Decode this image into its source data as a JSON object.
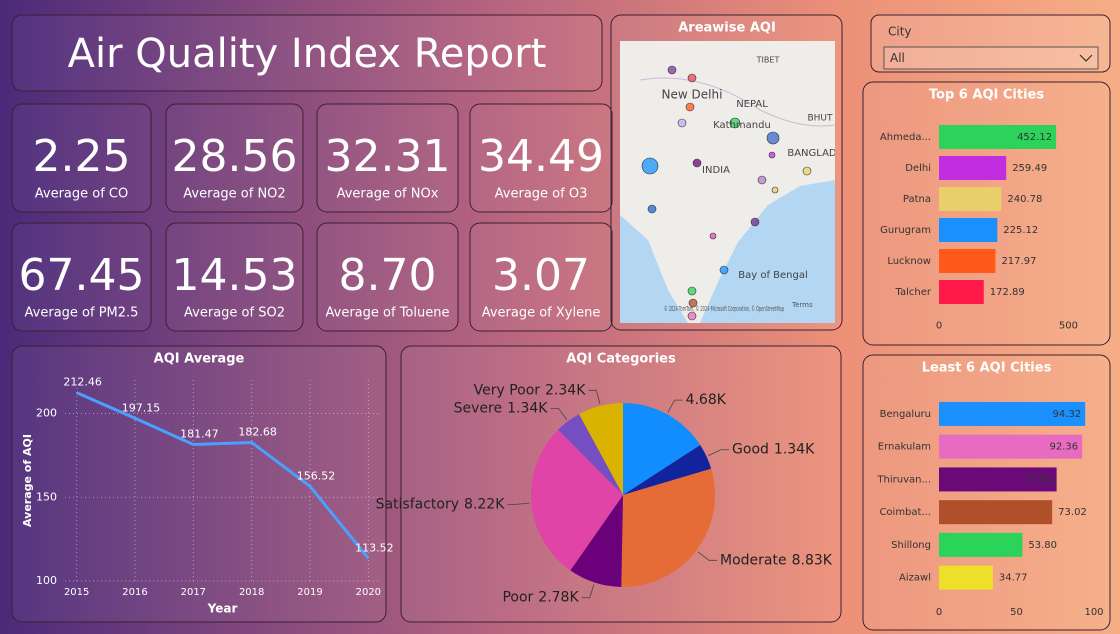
{
  "header": {
    "title": "Air Quality Index Report"
  },
  "kpis": [
    {
      "value": "2.25",
      "label": "Average of CO"
    },
    {
      "value": "28.56",
      "label": "Average of NO2"
    },
    {
      "value": "32.31",
      "label": "Average of NOx"
    },
    {
      "value": "34.49",
      "label": "Average of O3"
    },
    {
      "value": "67.45",
      "label": "Average of PM2.5"
    },
    {
      "value": "14.53",
      "label": "Average of SO2"
    },
    {
      "value": "8.70",
      "label": "Average of Toluene"
    },
    {
      "value": "3.07",
      "label": "Average of Xylene"
    }
  ],
  "slicer": {
    "label": "City",
    "selected": "All"
  },
  "map": {
    "title": "Areawise AQI",
    "labels": [
      "TIBET",
      "New Delhi",
      "NEPAL",
      "Kathmandu",
      "BHUT",
      "BANGLAD",
      "INDIA",
      "Bay of Bengal"
    ],
    "attribution": "© 2024 TomTom, © 2024 Microsoft Corporation, © OpenStreetMap",
    "terms": "Terms"
  },
  "chart_data": [
    {
      "type": "line",
      "title": "AQI Average",
      "x_label": "Year",
      "y_label": "Average of AQI",
      "x": [
        2015,
        2016,
        2017,
        2018,
        2019,
        2020
      ],
      "values": [
        212.46,
        197.15,
        181.47,
        182.68,
        156.52,
        113.52
      ],
      "color": "#4aa0ff",
      "xlim": [
        2014.8,
        2020.2
      ],
      "xticks": [
        2015,
        2016,
        2017,
        2018,
        2019,
        2020
      ],
      "ylim": [
        100,
        220
      ],
      "yticks": [
        100,
        150,
        200
      ],
      "grid": true
    },
    {
      "type": "pie",
      "title": "AQI Categories",
      "categories": [
        null,
        "Good",
        "Moderate",
        "Poor",
        "Satisfactory",
        "Severe",
        "Very Poor"
      ],
      "values": [
        4680,
        1340,
        8830,
        2780,
        8220,
        1340,
        2340
      ],
      "value_labels": [
        "4.68K",
        "1.34K",
        "8.83K",
        "2.78K",
        "8.22K",
        "1.34K",
        "2.34K"
      ],
      "colors": [
        "#118dff",
        "#12239e",
        "#e66c37",
        "#6b007b",
        "#e044a7",
        "#744ec2",
        "#d9b300"
      ]
    },
    {
      "type": "hbar",
      "title": "Top 6 AQI Cities",
      "categories": [
        "Ahmeda...",
        "Delhi",
        "Patna",
        "Gurugram",
        "Lucknow",
        "Talcher"
      ],
      "values": [
        452.12,
        259.49,
        240.78,
        225.12,
        217.97,
        172.89
      ],
      "colors": [
        "#2bd35a",
        "#c02ee0",
        "#e8cf6a",
        "#1a90ff",
        "#ff5a1a",
        "#ff1a4a"
      ],
      "xlim": [
        0,
        560
      ],
      "xticks": [
        0,
        500
      ]
    },
    {
      "type": "hbar",
      "title": "Least 6 AQI Cities",
      "categories": [
        "Bengaluru",
        "Ernakulam",
        "Thiruvan...",
        "Coimbat...",
        "Shillong",
        "Aizawl"
      ],
      "values": [
        94.32,
        92.36,
        75.88,
        73.02,
        53.8,
        34.77
      ],
      "value_labels": [
        "94.32",
        "92.36",
        "75.88",
        "73.02",
        "53.80",
        "34.77"
      ],
      "colors": [
        "#1a90ff",
        "#e76bc0",
        "#6a0a78",
        "#b0502a",
        "#2bd35a",
        "#ece02a"
      ],
      "xlim": [
        0,
        100
      ],
      "xticks": [
        0,
        50,
        100
      ]
    }
  ]
}
